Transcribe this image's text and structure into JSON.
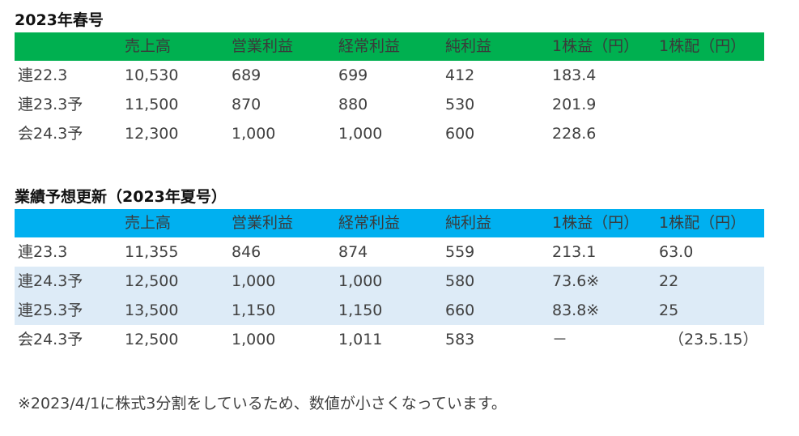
{
  "section1": {
    "title": "2023年春号",
    "headers": [
      "",
      "売上高",
      "営業利益",
      "経常利益",
      "純利益",
      "1株益（円）",
      "1株配（円）"
    ],
    "rows": [
      [
        "連22.3",
        "10,530",
        "689",
        "699",
        "412",
        "183.4",
        ""
      ],
      [
        "連23.3予",
        "11,500",
        "870",
        "880",
        "530",
        "201.9",
        ""
      ],
      [
        "会24.3予",
        "12,300",
        "1,000",
        "1,000",
        "600",
        "228.6",
        ""
      ]
    ],
    "header_color": "#00b050"
  },
  "section2": {
    "title": "業績予想更新（2023年夏号）",
    "headers": [
      "",
      "売上高",
      "営業利益",
      "経常利益",
      "純利益",
      "1株益（円）",
      "1株配（円）"
    ],
    "rows": [
      [
        "連23.3",
        "11,355",
        "846",
        "874",
        "559",
        "213.1",
        "63.0"
      ],
      [
        "連24.3予",
        "12,500",
        "1,000",
        "1,000",
        "580",
        "73.6※",
        "22"
      ],
      [
        "連25.3予",
        "13,500",
        "1,150",
        "1,150",
        "660",
        "83.8※",
        "25"
      ],
      [
        "会24.3予",
        "12,500",
        "1,000",
        "1,011",
        "583",
        "－",
        "（23.5.15）"
      ]
    ],
    "header_color": "#00b0f0",
    "shaded_row_color": "#ddebf7"
  },
  "footnote": "※2023/4/1に株式3分割をしているため、数値が小さくなっています。"
}
